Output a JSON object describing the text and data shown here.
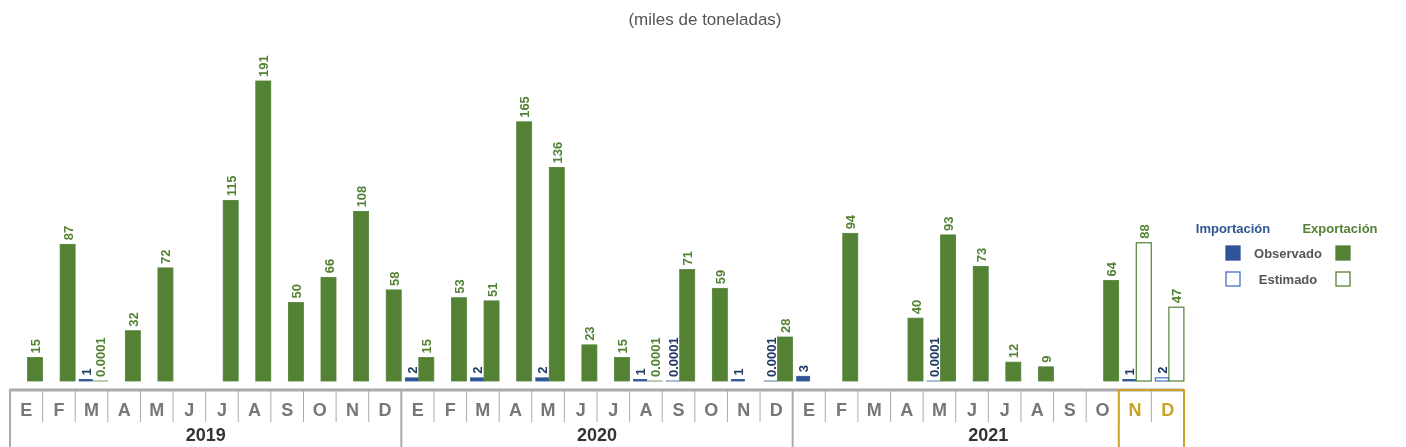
{
  "chart_data": {
    "type": "bar",
    "title": "(miles de toneladas)",
    "categories": [
      "E",
      "F",
      "M",
      "A",
      "M",
      "J",
      "J",
      "A",
      "S",
      "O",
      "N",
      "D",
      "E",
      "F",
      "M",
      "A",
      "M",
      "J",
      "J",
      "A",
      "S",
      "O",
      "N",
      "D",
      "E",
      "F",
      "M",
      "A",
      "M",
      "J",
      "J",
      "A",
      "S",
      "O",
      "N",
      "D"
    ],
    "series": [
      {
        "name": "Importación",
        "color": "#2f5597",
        "values": [
          null,
          null,
          1,
          null,
          null,
          null,
          null,
          null,
          null,
          null,
          null,
          null,
          2,
          null,
          2,
          null,
          2,
          null,
          null,
          1,
          0.0001,
          null,
          1,
          0.0001,
          3,
          null,
          null,
          null,
          0.0001,
          null,
          null,
          null,
          null,
          null,
          1,
          null
        ]
      },
      {
        "name": "Exportación",
        "color": "#548235",
        "values": [
          15,
          87,
          0.0001,
          32,
          72,
          null,
          115,
          191,
          50,
          66,
          108,
          58,
          15,
          53,
          51,
          165,
          136,
          23,
          15,
          0.0001,
          71,
          59,
          null,
          28,
          null,
          94,
          null,
          40,
          93,
          73,
          12,
          9,
          null,
          64,
          null,
          null
        ]
      },
      {
        "color": "#4472c4",
        "values": [
          null,
          null,
          null,
          null,
          null,
          null,
          null,
          null,
          null,
          null,
          null,
          null,
          null,
          null,
          null,
          null,
          null,
          null,
          null,
          null,
          null,
          null,
          null,
          null,
          null,
          null,
          null,
          null,
          null,
          null,
          null,
          null,
          null,
          null,
          null,
          2
        ]
      },
      {
        "color": "#548235",
        "values": [
          null,
          null,
          null,
          null,
          null,
          null,
          null,
          null,
          null,
          null,
          null,
          null,
          null,
          null,
          null,
          null,
          null,
          null,
          null,
          null,
          null,
          null,
          null,
          null,
          null,
          null,
          null,
          null,
          null,
          null,
          null,
          null,
          null,
          null,
          88,
          47
        ]
      }
    ],
    "data_labels": true,
    "legend": "right",
    "annotations": [
      "2019",
      "2020",
      "2021",
      "Observado",
      "Estimado"
    ]
  }
}
